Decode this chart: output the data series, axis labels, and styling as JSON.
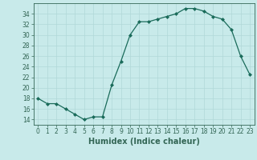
{
  "x": [
    0,
    1,
    2,
    3,
    4,
    5,
    6,
    7,
    8,
    9,
    10,
    11,
    12,
    13,
    14,
    15,
    16,
    17,
    18,
    19,
    20,
    21,
    22,
    23
  ],
  "y": [
    18,
    17,
    17,
    16,
    15,
    14,
    14.5,
    14.5,
    20.5,
    25,
    30,
    32.5,
    32.5,
    33,
    33.5,
    34,
    35,
    35,
    34.5,
    33.5,
    33,
    31,
    26,
    22.5
  ],
  "line_color": "#1a6b5a",
  "marker": "D",
  "marker_size": 2.0,
  "bg_color": "#c8eaea",
  "grid_color": "#b0d8d8",
  "xlabel": "Humidex (Indice chaleur)",
  "ylim": [
    13,
    36
  ],
  "xlim": [
    -0.5,
    23.5
  ],
  "yticks": [
    14,
    16,
    18,
    20,
    22,
    24,
    26,
    28,
    30,
    32,
    34
  ],
  "xticks": [
    0,
    1,
    2,
    3,
    4,
    5,
    6,
    7,
    8,
    9,
    10,
    11,
    12,
    13,
    14,
    15,
    16,
    17,
    18,
    19,
    20,
    21,
    22,
    23
  ],
  "tick_label_fontsize": 5.5,
  "xlabel_fontsize": 7,
  "spine_color": "#336655"
}
